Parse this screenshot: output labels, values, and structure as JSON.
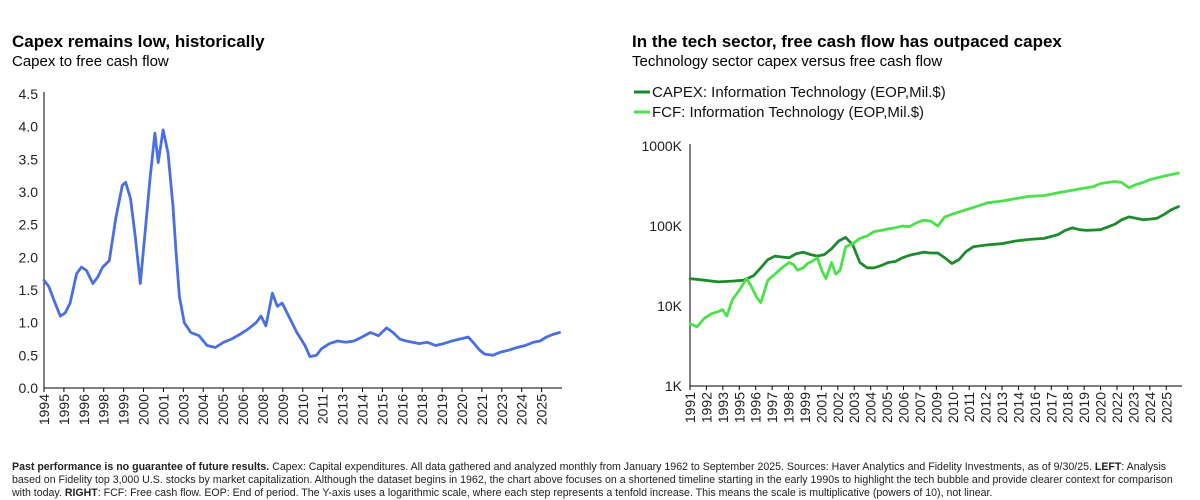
{
  "left": {
    "title": "Capex remains low, historically",
    "subtitle": "Capex to free cash flow"
  },
  "right": {
    "title": "In the tech sector, free cash flow has outpaced capex",
    "subtitle": "Technology sector capex versus free cash flow"
  },
  "footnote": {
    "bold1": "Past performance is no guarantee of future results.",
    "text1": " Capex: Capital expenditures. All data gathered and analyzed monthly from January 1962 to September 2025. Sources: Haver Analytics and Fidelity Investments, as of 9/30/25. ",
    "bold2": "LEFT",
    "text2": ": Analysis based on Fidelity top 3,000 U.S. stocks by market capitalization. Although the dataset begins in 1962, the chart above focuses on a shortened timeline starting in the early 1990s to highlight the tech bubble and provide clearer context for comparison with today. ",
    "bold3": "RIGHT",
    "text3": ": FCF: Free cash flow. EOP: End of period. The Y-axis uses a logarithmic scale, where each step represents a tenfold increase. This means the scale is multiplicative (powers of 10), not linear."
  },
  "chart_data": [
    {
      "type": "line",
      "title": "Capex remains low, historically",
      "subtitle": "Capex to free cash flow",
      "xlabel": "",
      "ylabel": "",
      "ylim": [
        0,
        4.5
      ],
      "xlim": [
        1994,
        2025.75
      ],
      "y_ticks": [
        "0.0",
        "0.5",
        "1.0",
        "1.5",
        "2.0",
        "2.5",
        "3.0",
        "3.5",
        "4.0",
        "4.5"
      ],
      "y_tick_values": [
        0,
        0.5,
        1,
        1.5,
        2,
        2.5,
        3,
        3.5,
        4,
        4.5
      ],
      "x_ticks": [
        "1994",
        "1995",
        "1996",
        "1998",
        "1999",
        "2000",
        "2001",
        "2003",
        "2004",
        "2005",
        "2006",
        "2008",
        "2009",
        "2010",
        "2011",
        "2013",
        "2014",
        "2015",
        "2016",
        "2018",
        "2019",
        "2020",
        "2021",
        "2023",
        "2024",
        "2025"
      ],
      "x_tick_values": [
        1994,
        1995.22,
        1996.44,
        1997.66,
        1998.88,
        2000.1,
        2001.32,
        2002.54,
        2003.76,
        2004.98,
        2006.2,
        2007.42,
        2008.64,
        2009.86,
        2011.08,
        2012.3,
        2013.52,
        2014.74,
        2015.96,
        2017.18,
        2018.4,
        2019.62,
        2020.84,
        2022.06,
        2023.28,
        2024.5
      ],
      "series": [
        {
          "name": "Capex to free cash flow",
          "color": "#4a6fe3",
          "x": [
            1994.0,
            1994.3,
            1994.6,
            1995.0,
            1995.3,
            1995.6,
            1996.0,
            1996.3,
            1996.6,
            1997.0,
            1997.3,
            1997.6,
            1998.0,
            1998.4,
            1998.8,
            1999.0,
            1999.3,
            1999.6,
            1999.9,
            2000.2,
            2000.5,
            2000.8,
            2001.0,
            2001.3,
            2001.6,
            2001.9,
            2002.1,
            2002.3,
            2002.6,
            2003.0,
            2003.5,
            2004.0,
            2004.5,
            2005.0,
            2005.5,
            2006.0,
            2006.5,
            2007.0,
            2007.3,
            2007.6,
            2008.0,
            2008.3,
            2008.6,
            2009.0,
            2009.5,
            2010.0,
            2010.3,
            2010.7,
            2011.0,
            2011.5,
            2012.0,
            2012.5,
            2013.0,
            2013.5,
            2014.0,
            2014.5,
            2015.0,
            2015.4,
            2015.8,
            2016.2,
            2016.6,
            2017.0,
            2017.5,
            2018.0,
            2018.5,
            2019.0,
            2019.5,
            2020.0,
            2020.3,
            2020.7,
            2021.0,
            2021.5,
            2022.0,
            2022.5,
            2023.0,
            2023.5,
            2024.0,
            2024.4,
            2024.8,
            2025.2,
            2025.6
          ],
          "values": [
            1.65,
            1.55,
            1.35,
            1.1,
            1.15,
            1.3,
            1.75,
            1.85,
            1.8,
            1.6,
            1.7,
            1.85,
            1.95,
            2.6,
            3.1,
            3.15,
            2.9,
            2.3,
            1.6,
            2.4,
            3.2,
            3.9,
            3.45,
            3.95,
            3.6,
            2.8,
            2.05,
            1.4,
            1.0,
            0.85,
            0.8,
            0.65,
            0.62,
            0.7,
            0.75,
            0.82,
            0.9,
            1.0,
            1.1,
            0.95,
            1.45,
            1.25,
            1.3,
            1.1,
            0.85,
            0.65,
            0.48,
            0.5,
            0.6,
            0.68,
            0.72,
            0.7,
            0.72,
            0.78,
            0.85,
            0.8,
            0.92,
            0.85,
            0.75,
            0.72,
            0.7,
            0.68,
            0.7,
            0.65,
            0.68,
            0.72,
            0.75,
            0.78,
            0.7,
            0.58,
            0.52,
            0.5,
            0.55,
            0.58,
            0.62,
            0.65,
            0.7,
            0.72,
            0.78,
            0.82,
            0.85
          ]
        }
      ]
    },
    {
      "type": "line",
      "title": "In the tech sector, free cash flow has outpaced capex",
      "subtitle": "Technology sector capex versus free cash flow",
      "xlabel": "",
      "ylabel": "",
      "yscale": "log",
      "ylim": [
        1000,
        1000000
      ],
      "xlim": [
        1991,
        2025.75
      ],
      "legend_position": "top-left",
      "y_ticks": [
        "1K",
        "10K",
        "100K",
        "1000K"
      ],
      "y_tick_values": [
        1000,
        10000,
        100000,
        1000000
      ],
      "x_ticks": [
        "1991",
        "1992",
        "1993",
        "1995",
        "1996",
        "1997",
        "1998",
        "1999",
        "2001",
        "2002",
        "2003",
        "2004",
        "2005",
        "2006",
        "2007",
        "2009",
        "2010",
        "2011",
        "2012",
        "2013",
        "2014",
        "2016",
        "2017",
        "2018",
        "2019",
        "2020",
        "2022",
        "2023",
        "2024",
        "2025"
      ],
      "x_tick_values": [
        1991,
        1992.16,
        1993.32,
        1994.48,
        1995.64,
        1996.8,
        1997.96,
        1999.12,
        2000.28,
        2001.44,
        2002.6,
        2003.76,
        2004.92,
        2006.08,
        2007.24,
        2008.4,
        2009.56,
        2010.72,
        2011.88,
        2013.04,
        2014.2,
        2015.36,
        2016.52,
        2017.68,
        2018.84,
        2020.0,
        2021.16,
        2022.32,
        2023.48,
        2024.64
      ],
      "series": [
        {
          "name": "CAPEX: Information Technology (EOP,Mil.$)",
          "color": "#1e8a2e",
          "x": [
            1991.0,
            1992.0,
            1993.0,
            1994.0,
            1994.8,
            1995.5,
            1996.0,
            1996.5,
            1997.0,
            1997.5,
            1998.0,
            1998.5,
            1999.0,
            1999.5,
            2000.0,
            2000.5,
            2001.0,
            2001.5,
            2002.0,
            2002.5,
            2003.0,
            2003.5,
            2004.0,
            2004.5,
            2005.0,
            2005.5,
            2006.0,
            2006.5,
            2007.0,
            2007.5,
            2008.0,
            2008.5,
            2009.0,
            2009.5,
            2010.0,
            2010.5,
            2011.0,
            2012.0,
            2013.0,
            2014.0,
            2015.0,
            2016.0,
            2017.0,
            2017.5,
            2018.0,
            2018.5,
            2019.0,
            2020.0,
            2021.0,
            2021.5,
            2022.0,
            2022.5,
            2023.0,
            2023.5,
            2024.0,
            2024.5,
            2025.0,
            2025.5
          ],
          "values": [
            22000,
            21000,
            20000,
            20500,
            21000,
            24000,
            30000,
            38000,
            42000,
            41000,
            40000,
            45000,
            47000,
            44000,
            42000,
            44000,
            52000,
            65000,
            72000,
            58000,
            35000,
            30000,
            30000,
            32000,
            35000,
            36000,
            40000,
            43000,
            45000,
            47000,
            46000,
            46000,
            40000,
            34000,
            38000,
            48000,
            55000,
            58000,
            60000,
            65000,
            68000,
            70000,
            78000,
            88000,
            95000,
            90000,
            88000,
            90000,
            105000,
            120000,
            130000,
            125000,
            120000,
            122000,
            125000,
            140000,
            160000,
            175000
          ]
        },
        {
          "name": "FCF: Information Technology (EOP,Mil.$)",
          "color": "#4ae14a",
          "x": [
            1991.0,
            1991.5,
            1992.0,
            1992.5,
            1993.0,
            1993.3,
            1993.6,
            1994.0,
            1994.5,
            1995.0,
            1995.3,
            1995.7,
            1996.0,
            1996.5,
            1997.0,
            1997.5,
            1998.0,
            1998.3,
            1998.6,
            1999.0,
            1999.3,
            1999.6,
            2000.0,
            2000.3,
            2000.6,
            2001.0,
            2001.3,
            2001.6,
            2002.0,
            2002.5,
            2003.0,
            2003.5,
            2004.0,
            2004.5,
            2005.0,
            2005.5,
            2006.0,
            2006.5,
            2007.0,
            2007.5,
            2008.0,
            2008.5,
            2009.0,
            2009.5,
            2010.0,
            2010.5,
            2011.0,
            2012.0,
            2013.0,
            2014.0,
            2015.0,
            2016.0,
            2017.0,
            2018.0,
            2019.0,
            2019.5,
            2020.0,
            2020.5,
            2021.0,
            2021.5,
            2022.0,
            2022.5,
            2023.0,
            2023.5,
            2024.0,
            2024.5,
            2025.0,
            2025.5
          ],
          "values": [
            6000,
            5500,
            7000,
            8000,
            8500,
            9000,
            7500,
            12000,
            16000,
            22000,
            18000,
            13000,
            11000,
            21000,
            25000,
            30000,
            35000,
            33000,
            28000,
            30000,
            34000,
            36000,
            40000,
            28000,
            22000,
            35000,
            25000,
            28000,
            55000,
            60000,
            70000,
            75000,
            85000,
            88000,
            92000,
            95000,
            100000,
            98000,
            110000,
            118000,
            115000,
            100000,
            130000,
            140000,
            150000,
            160000,
            170000,
            195000,
            205000,
            220000,
            235000,
            240000,
            260000,
            280000,
            300000,
            310000,
            340000,
            350000,
            360000,
            350000,
            300000,
            330000,
            350000,
            380000,
            400000,
            420000,
            440000,
            460000
          ]
        }
      ]
    }
  ]
}
